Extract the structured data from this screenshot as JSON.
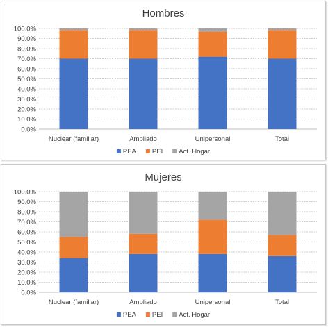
{
  "colors": {
    "PEA": "#4472c4",
    "PEI": "#ed7d31",
    "Act. Hogar": "#a5a5a5"
  },
  "chart_data": [
    {
      "type": "bar",
      "stacked": true,
      "title": "Hombres",
      "categories": [
        "Nuclear (familiar)",
        "Ampliado",
        "Unipersonal",
        "Total"
      ],
      "series": [
        {
          "name": "PEA",
          "values": [
            70.0,
            70.0,
            72.0,
            70.0
          ]
        },
        {
          "name": "PEI",
          "values": [
            28.5,
            28.5,
            25.0,
            28.5
          ]
        },
        {
          "name": "Act. Hogar",
          "values": [
            1.5,
            1.5,
            3.0,
            1.5
          ]
        }
      ],
      "ylim": [
        0,
        100
      ],
      "yticks": [
        "0.0%",
        "10.0%",
        "20.0%",
        "30.0%",
        "40.0%",
        "50.0%",
        "60.0%",
        "70.0%",
        "80.0%",
        "90.0%",
        "100.0%"
      ],
      "grid": true,
      "legend": "bottom"
    },
    {
      "type": "bar",
      "stacked": true,
      "title": "Mujeres",
      "categories": [
        "Nuclear (familiar)",
        "Ampliado",
        "Unipersonal",
        "Total"
      ],
      "series": [
        {
          "name": "PEA",
          "values": [
            34.0,
            38.0,
            38.0,
            36.0
          ]
        },
        {
          "name": "PEI",
          "values": [
            21.0,
            20.0,
            34.0,
            21.0
          ]
        },
        {
          "name": "Act. Hogar",
          "values": [
            45.0,
            42.0,
            28.0,
            43.0
          ]
        }
      ],
      "ylim": [
        0,
        100
      ],
      "yticks": [
        "0.0%",
        "10.0%",
        "20.0%",
        "30.0%",
        "40.0%",
        "50.0%",
        "60.0%",
        "70.0%",
        "80.0%",
        "90.0%",
        "100.0%"
      ],
      "grid": true,
      "legend": "bottom"
    }
  ]
}
